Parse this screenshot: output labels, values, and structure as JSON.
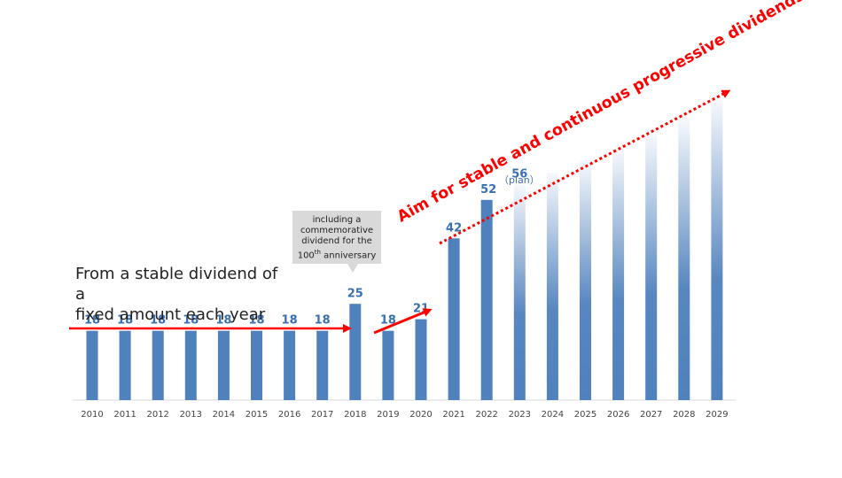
{
  "chart_data": {
    "type": "bar",
    "categories": [
      "2010",
      "2011",
      "2012",
      "2013",
      "2014",
      "2015",
      "2016",
      "2017",
      "2018",
      "2019",
      "2020",
      "2021",
      "2022",
      "2023",
      "2024",
      "2025",
      "2026",
      "2027",
      "2028",
      "2029"
    ],
    "values": [
      18,
      18,
      18,
      18,
      18,
      18,
      18,
      18,
      25,
      18,
      21,
      42,
      52,
      56,
      null,
      null,
      null,
      null,
      null,
      null
    ],
    "projected_values": [
      null,
      null,
      null,
      null,
      null,
      null,
      null,
      null,
      null,
      null,
      null,
      null,
      null,
      56,
      59,
      62,
      65,
      69,
      73,
      78
    ],
    "data_labels": [
      "18",
      "18",
      "18",
      "18",
      "18",
      "18",
      "18",
      "18",
      "25",
      "18",
      "21",
      "42",
      "52",
      "56",
      "",
      "",
      "",
      "",
      "",
      ""
    ],
    "plan_label": "（plan）",
    "ylim": [
      0,
      80
    ],
    "grid": false,
    "colors": {
      "bar": "#4f81bd",
      "label": "#3a6fb0",
      "arrow": "#ff0000"
    },
    "annotations": {
      "left_text": "From a stable dividend of a\nfixed amount each year",
      "callout_line1": "including a",
      "callout_line2": "commemorative",
      "callout_line3": "dividend for the",
      "callout_line4_pre": "100",
      "callout_line4_sup": "th",
      "callout_line4_post": " anniversary",
      "headline": "Aim for stable and continuous progressive dividends"
    }
  }
}
